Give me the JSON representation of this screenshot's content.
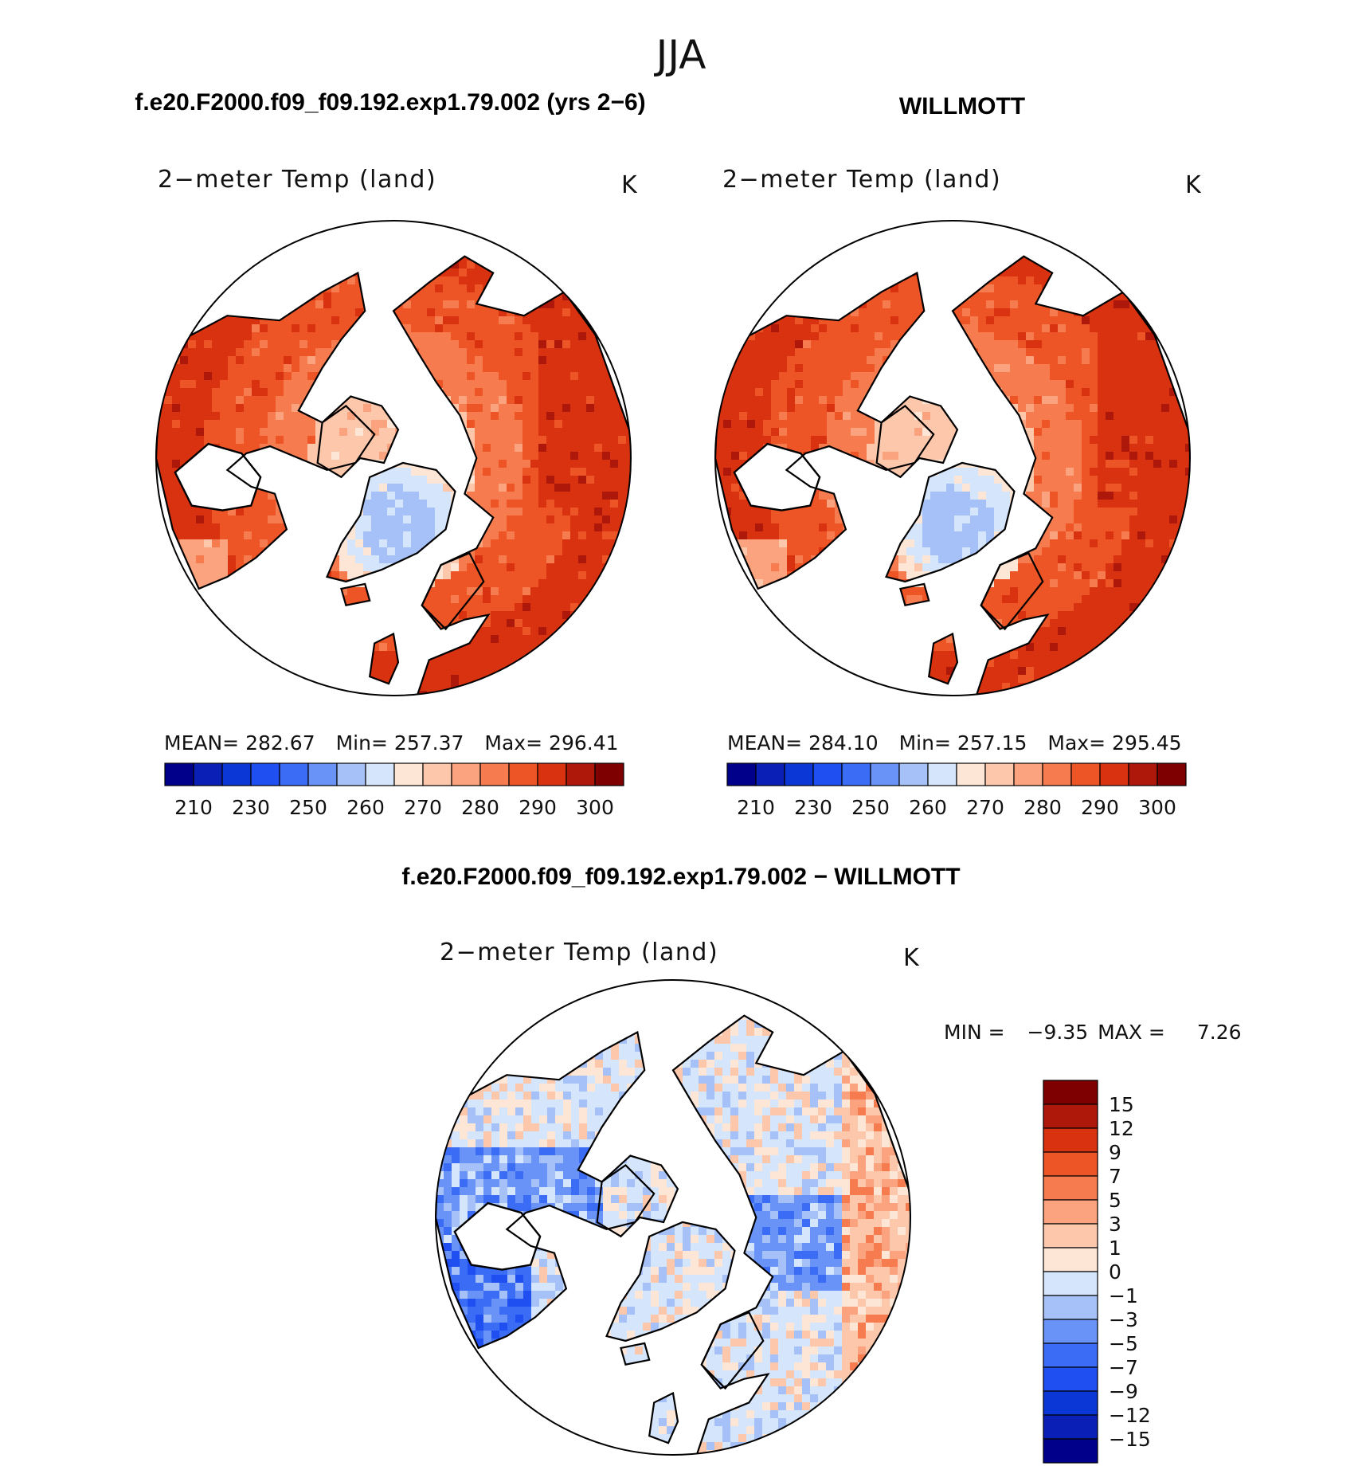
{
  "page": {
    "season": "JJA",
    "case_title": "f.e20.F2000.f09_f09.192.exp1.79.002 (yrs 2-6)",
    "obs_title": "WILLMOTT",
    "diff_title": "f.e20.F2000.f09_f09.192.exp1.79.002 - WILLMOTT"
  },
  "colors": {
    "ocean": "#ffffff",
    "coast": "#000000",
    "abs_levels": [
      "#00008b",
      "#0a1fb5",
      "#0a37d6",
      "#1f4ff0",
      "#3a6cf5",
      "#6a93f7",
      "#a6c1f7",
      "#d5e5fb",
      "#fde6d6",
      "#fcc7ab",
      "#fba27e",
      "#f67c50",
      "#ee5526",
      "#d83210",
      "#ae180a",
      "#7f0000"
    ],
    "diff_levels": [
      "#00008b",
      "#0a1fb5",
      "#0a37d6",
      "#1f4ff0",
      "#3a6cf5",
      "#6a93f7",
      "#a6c1f7",
      "#d5e5fb",
      "#fde6d6",
      "#fcc7ab",
      "#fba27e",
      "#f67c50",
      "#ee5526",
      "#d83210",
      "#ae180a",
      "#7f0000"
    ]
  },
  "chart_data": [
    {
      "type": "heatmap",
      "panel": "model",
      "title": "2-meter Temp (land)",
      "units": "K",
      "stats": {
        "mean_label": "MEAN=",
        "mean": "282.67",
        "min_label": "Min=",
        "min": "257.37",
        "max_label": "Max=",
        "max": "296.41"
      },
      "legend_ticks": [
        "210",
        "230",
        "250",
        "260",
        "270",
        "280",
        "290",
        "300"
      ],
      "legend_levels": 16
    },
    {
      "type": "heatmap",
      "panel": "observations",
      "title": "2-meter Temp (land)",
      "units": "K",
      "stats": {
        "mean_label": "MEAN=",
        "mean": "284.10",
        "min_label": "Min=",
        "min": "257.15",
        "max_label": "Max=",
        "max": "295.45"
      },
      "legend_ticks": [
        "210",
        "230",
        "250",
        "260",
        "270",
        "280",
        "290",
        "300"
      ],
      "legend_levels": 16
    },
    {
      "type": "heatmap",
      "panel": "difference",
      "title": "2-meter Temp (land)",
      "units": "K",
      "stats": {
        "min_label": "MIN =",
        "min": "-9.35",
        "max_label": "MAX =",
        "max": "7.26"
      },
      "legend_ticks": [
        "15",
        "12",
        "9",
        "7",
        "5",
        "3",
        "1",
        "0",
        "-1",
        "-3",
        "-5",
        "-7",
        "-9",
        "-12",
        "-15"
      ],
      "legend_levels": 16
    }
  ]
}
